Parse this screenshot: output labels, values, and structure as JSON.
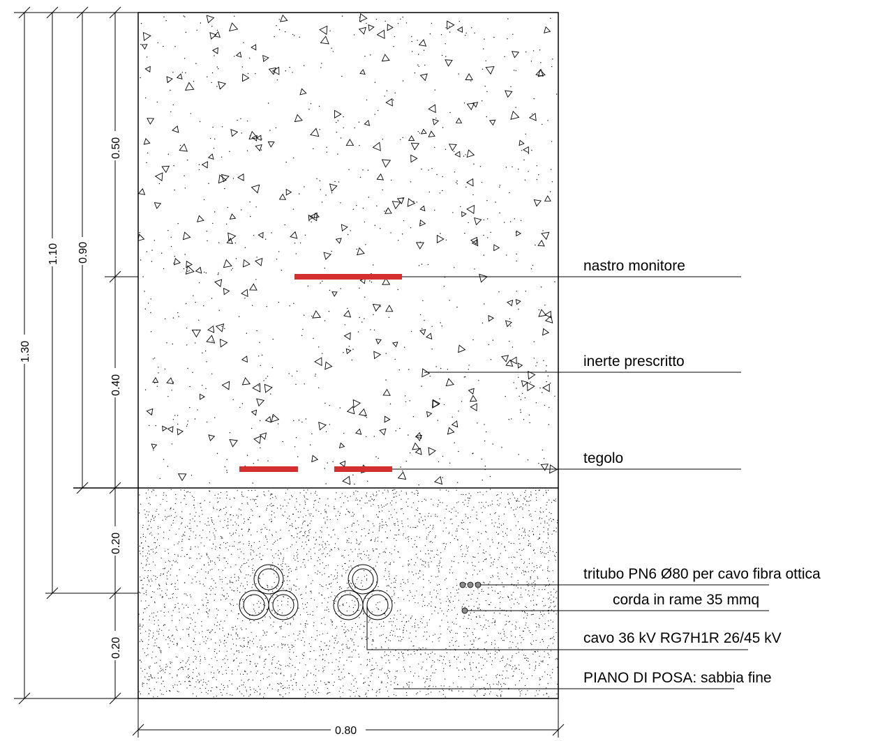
{
  "title": "",
  "colors": {
    "line": "#000000",
    "tape": "#d32f2f",
    "cable_fill": "#ffffff",
    "dot_fill": "#8c8c8c"
  },
  "labels": {
    "nastro": "nastro monitore",
    "inerte": "inerte prescritto",
    "tegolo": "tegolo",
    "tritubo": "tritubo PN6 Ø80 per cavo fibra ottica",
    "corda": "corda in rame 35 mmq",
    "cavo": "cavo 36 kV RG7H1R 26/45 kV",
    "piano": "PIANO DI POSA: sabbia fine"
  },
  "dimensions": {
    "total": "1.30",
    "d110": "1.10",
    "d090": "0.90",
    "d050": "0.50",
    "d040": "0.40",
    "d020_top": "0.20",
    "d020_bottom": "0.20",
    "width": "0.80"
  },
  "icons": {
    "aggregate": "triangle-aggregate-hatch",
    "sand": "dot-sand-hatch",
    "cable": "cable-circle-icon"
  }
}
